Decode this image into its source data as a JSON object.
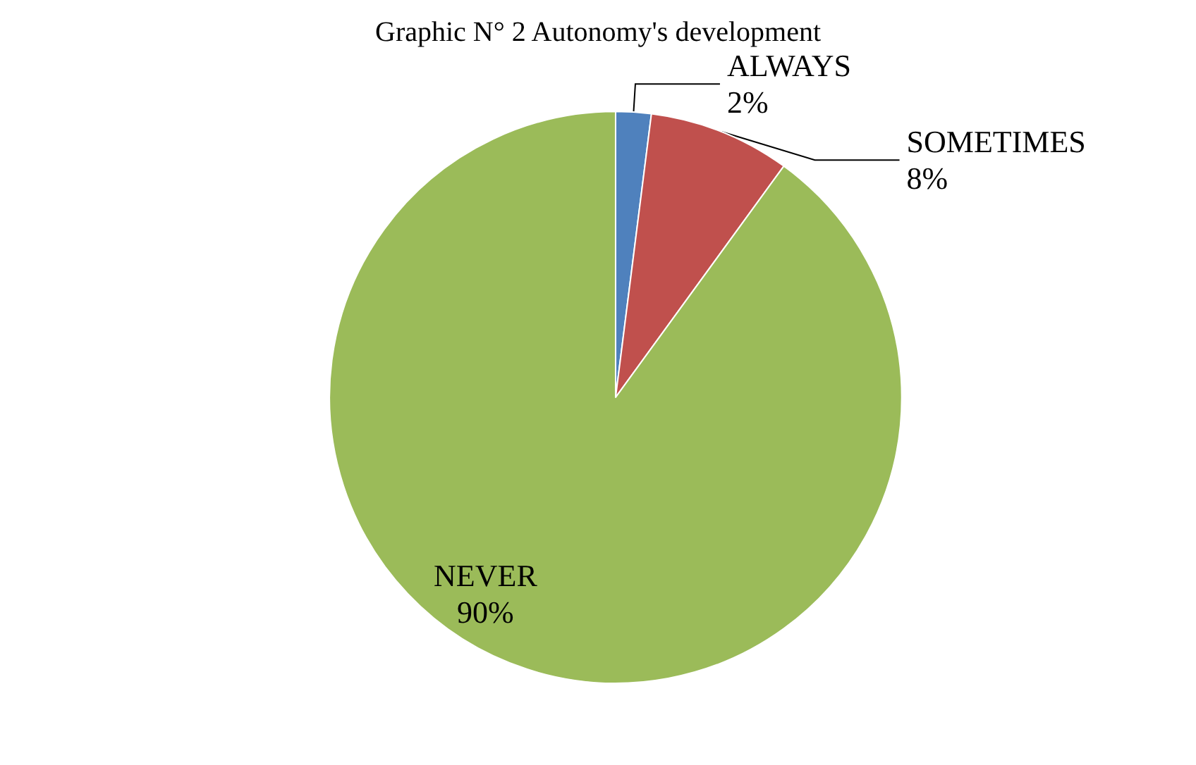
{
  "chart_data": {
    "type": "pie",
    "title": "Graphic N° 2 Autonomy's development",
    "categories": [
      "ALWAYS",
      "SOMETIMES",
      "NEVER"
    ],
    "values": [
      2,
      8,
      90
    ],
    "colors": [
      "#4f81bd",
      "#c0504d",
      "#9bbb59"
    ],
    "legend": false,
    "value_labels": [
      "2%",
      "8%",
      "90%"
    ]
  }
}
